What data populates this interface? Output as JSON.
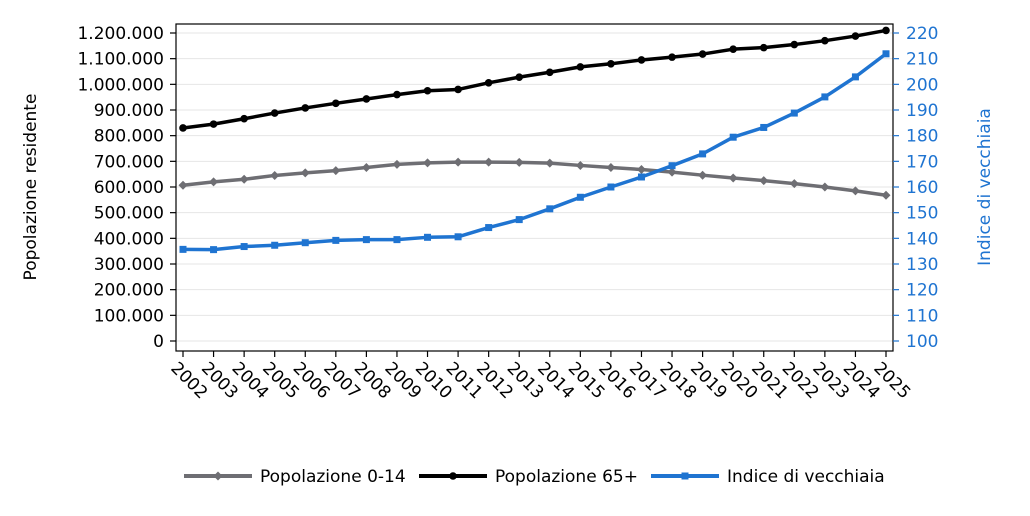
{
  "chart_data": {
    "type": "line",
    "title": "",
    "xlabel": "",
    "ylabel_left": "Popolazione residente",
    "ylabel_right": "Indice di vecchiaia",
    "ylim_left": [
      0,
      1200000
    ],
    "ylim_right": [
      100,
      220
    ],
    "left_ticks": [
      "0",
      "100.000",
      "200.000",
      "300.000",
      "400.000",
      "500.000",
      "600.000",
      "700.000",
      "800.000",
      "900.000",
      "1.000.000",
      "1.100.000",
      "1.200.000"
    ],
    "right_ticks": [
      "100",
      "110",
      "120",
      "130",
      "140",
      "150",
      "160",
      "170",
      "180",
      "190",
      "200",
      "210",
      "220"
    ],
    "categories": [
      "2002",
      "2003",
      "2004",
      "2005",
      "2006",
      "2007",
      "2008",
      "2009",
      "2010",
      "2011",
      "2012",
      "2013",
      "2014",
      "2015",
      "2016",
      "2017",
      "2018",
      "2019",
      "2020",
      "2021",
      "2022",
      "2023",
      "2024",
      "2025"
    ],
    "grid": "horizontal",
    "legend_position": "bottom",
    "series": [
      {
        "name": "Popolazione 0-14",
        "axis": "left",
        "color": "#6e6e73",
        "marker": "diamond",
        "values": [
          607000,
          620000,
          630000,
          645000,
          655000,
          664000,
          676000,
          688000,
          694000,
          697000,
          697000,
          696000,
          693000,
          684000,
          676000,
          668000,
          658000,
          646000,
          635000,
          625000,
          613000,
          600000,
          585000,
          568000
        ]
      },
      {
        "name": "Popolazione 65+",
        "axis": "left",
        "color": "#000000",
        "marker": "circle",
        "values": [
          830000,
          845000,
          866000,
          888000,
          908000,
          926000,
          943000,
          960000,
          975000,
          980000,
          1006000,
          1028000,
          1047000,
          1068000,
          1080000,
          1095000,
          1106000,
          1118000,
          1137000,
          1143000,
          1155000,
          1170000,
          1188000,
          1210000
        ]
      },
      {
        "name": "Indice di vecchiaia",
        "axis": "right",
        "color": "#1f74d1",
        "marker": "square",
        "values": [
          135.7,
          135.6,
          136.8,
          137.3,
          138.3,
          139.2,
          139.5,
          139.5,
          140.4,
          140.6,
          144.2,
          147.3,
          151.5,
          156.0,
          160.0,
          163.9,
          168.3,
          172.9,
          179.4,
          183.2,
          188.8,
          195.1,
          202.9,
          211.9
        ]
      }
    ]
  }
}
